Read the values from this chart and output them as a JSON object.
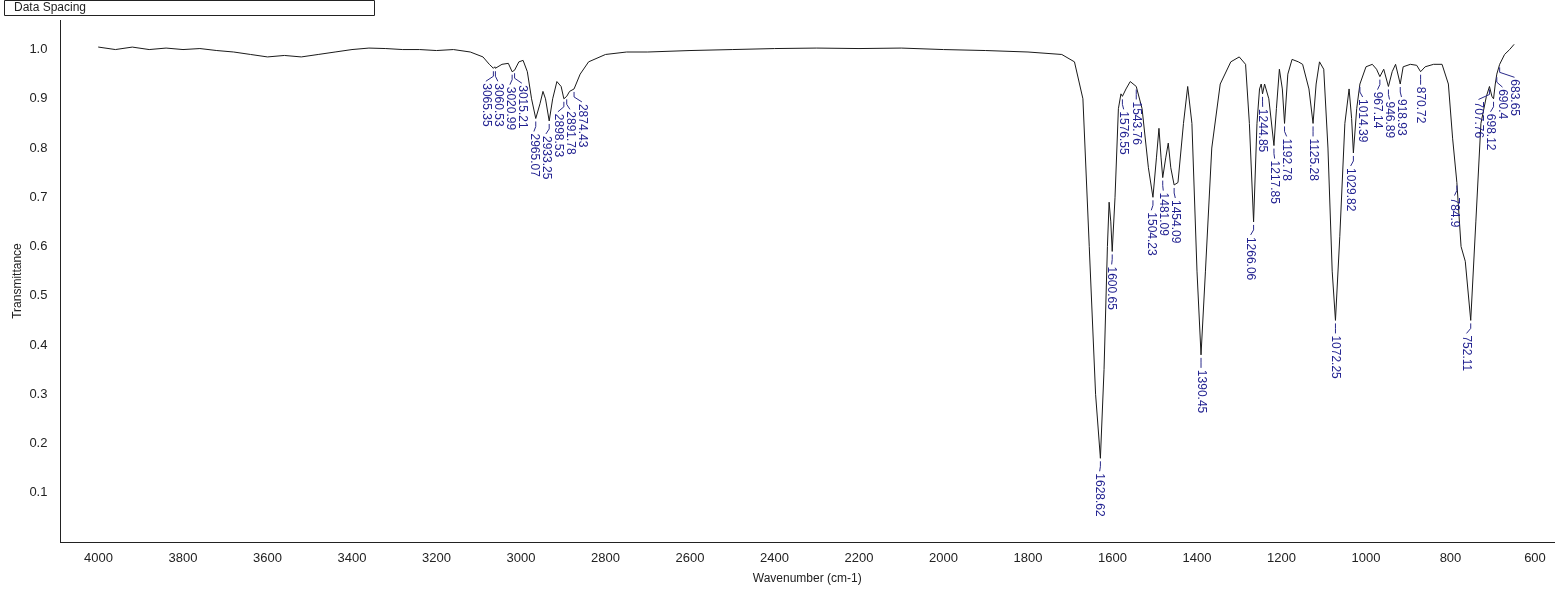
{
  "chart_data": {
    "type": "line",
    "xlabel": "Wavenumber (cm-1)",
    "ylabel": "Transmittance",
    "xlim": [
      4090,
      555
    ],
    "xticks": [
      4000,
      3800,
      3600,
      3400,
      3200,
      3000,
      2800,
      2600,
      2400,
      2200,
      2000,
      1800,
      1600,
      1400,
      1200,
      1000,
      800,
      600
    ],
    "ylim": [
      0,
      1.06
    ],
    "yticks": [
      0.1,
      0.2,
      0.3,
      0.4,
      0.5,
      0.6,
      0.7,
      0.8,
      0.9,
      {
        "value": 1,
        "label": "1.0"
      }
    ],
    "grid": false,
    "legend": false,
    "marker": "none",
    "line_style": "solid",
    "series": [
      {
        "color": "#1a1a1a",
        "x": [
          4000,
          3960,
          3920,
          3880,
          3840,
          3800,
          3760,
          3720,
          3680,
          3640,
          3600,
          3560,
          3520,
          3480,
          3440,
          3400,
          3360,
          3320,
          3280,
          3240,
          3200,
          3160,
          3120,
          3090,
          3075,
          3065.35,
          3062,
          3060.53,
          3045,
          3030,
          3020.99,
          3015.21,
          3005,
          2995,
          2985,
          2975,
          2965.07,
          2955,
          2948,
          2942,
          2933.25,
          2925,
          2915,
          2905,
          2898.53,
          2891.78,
          2885,
          2874.43,
          2860,
          2840,
          2800,
          2750,
          2700,
          2600,
          2500,
          2400,
          2300,
          2200,
          2100,
          2000,
          1900,
          1800,
          1720,
          1690,
          1670,
          1655,
          1640,
          1628.62,
          1620,
          1612,
          1608,
          1604,
          1600.65,
          1594,
          1586,
          1580,
          1576.55,
          1568,
          1558,
          1543.76,
          1530,
          1515,
          1504.23,
          1496,
          1490,
          1485,
          1481.09,
          1474,
          1468,
          1462,
          1454.09,
          1445,
          1432,
          1422,
          1412,
          1400,
          1390.45,
          1380,
          1365,
          1345,
          1320,
          1300,
          1285,
          1276,
          1266.06,
          1258,
          1252,
          1248,
          1244.85,
          1240,
          1230,
          1217.85,
          1212,
          1205,
          1198,
          1192.78,
          1185,
          1175,
          1160,
          1150,
          1135,
          1125.28,
          1118,
          1110,
          1100,
          1090,
          1080,
          1072.25,
          1062,
          1050,
          1040,
          1034,
          1029.82,
          1022,
          1014.39,
          1000,
          985,
          975,
          967.14,
          958,
          946.89,
          938,
          930,
          918.93,
          912,
          895,
          880,
          870.72,
          860,
          840,
          820,
          805,
          795,
          784.9,
          775,
          765,
          752.11,
          740,
          728,
          715,
          707.76,
          702,
          698.12,
          694,
          690.4,
          683.65,
          672,
          660,
          650
        ],
        "values": [
          1.005,
          1.0,
          1.005,
          1.0,
          1.003,
          1.0,
          1.002,
          0.998,
          0.995,
          0.99,
          0.985,
          0.988,
          0.985,
          0.99,
          0.995,
          1.0,
          1.003,
          1.002,
          1.0,
          1.0,
          0.998,
          1.0,
          0.995,
          0.985,
          0.97,
          0.962,
          0.965,
          0.962,
          0.97,
          0.972,
          0.955,
          0.958,
          0.975,
          0.978,
          0.955,
          0.9,
          0.86,
          0.89,
          0.915,
          0.9,
          0.855,
          0.9,
          0.935,
          0.925,
          0.9,
          0.905,
          0.915,
          0.92,
          0.95,
          0.975,
          0.99,
          0.995,
          0.995,
          0.998,
          1.0,
          1.002,
          1.003,
          1.002,
          1.003,
          1.0,
          0.998,
          0.995,
          0.99,
          0.975,
          0.9,
          0.6,
          0.3,
          0.17,
          0.35,
          0.6,
          0.69,
          0.65,
          0.59,
          0.7,
          0.88,
          0.91,
          0.905,
          0.92,
          0.935,
          0.925,
          0.88,
          0.76,
          0.7,
          0.78,
          0.84,
          0.78,
          0.74,
          0.78,
          0.81,
          0.76,
          0.725,
          0.73,
          0.85,
          0.925,
          0.85,
          0.55,
          0.38,
          0.55,
          0.8,
          0.93,
          0.975,
          0.985,
          0.97,
          0.85,
          0.65,
          0.85,
          0.92,
          0.93,
          0.91,
          0.93,
          0.9,
          0.805,
          0.88,
          0.96,
          0.92,
          0.85,
          0.95,
          0.98,
          0.975,
          0.97,
          0.92,
          0.85,
          0.93,
          0.975,
          0.96,
          0.8,
          0.55,
          0.45,
          0.62,
          0.85,
          0.92,
          0.86,
          0.79,
          0.88,
          0.93,
          0.965,
          0.97,
          0.96,
          0.945,
          0.96,
          0.925,
          0.955,
          0.97,
          0.93,
          0.965,
          0.97,
          0.968,
          0.955,
          0.965,
          0.97,
          0.97,
          0.93,
          0.82,
          0.73,
          0.6,
          0.57,
          0.45,
          0.65,
          0.85,
          0.905,
          0.925,
          0.905,
          0.9,
          0.93,
          0.95,
          0.97,
          0.99,
          1.0,
          1.01
        ]
      }
    ],
    "annotations": [
      "Data Spacing",
      {
        "text": "3065.35",
        "x": 3065.35,
        "y": 0.962
      },
      {
        "text": "3060.53",
        "x": 3060.53,
        "y": 0.962
      },
      {
        "text": "3020.99",
        "x": 3020.99,
        "y": 0.955
      },
      {
        "text": "3015.21",
        "x": 3015.21,
        "y": 0.958
      },
      {
        "text": "2965.07",
        "x": 2965.07,
        "y": 0.86
      },
      {
        "text": "2933.25",
        "x": 2933.25,
        "y": 0.855
      },
      {
        "text": "2898.53",
        "x": 2898.53,
        "y": 0.9
      },
      {
        "text": "2891.78",
        "x": 2891.78,
        "y": 0.905
      },
      {
        "text": "2874.43",
        "x": 2874.43,
        "y": 0.92
      },
      {
        "text": "1628.62",
        "x": 1628.62,
        "y": 0.17
      },
      {
        "text": "1600.65",
        "x": 1600.65,
        "y": 0.59
      },
      {
        "text": "1576.55",
        "x": 1576.55,
        "y": 0.905
      },
      {
        "text": "1543.76",
        "x": 1543.76,
        "y": 0.925
      },
      {
        "text": "1504.23",
        "x": 1504.23,
        "y": 0.7
      },
      {
        "text": "1481.09",
        "x": 1481.09,
        "y": 0.74
      },
      {
        "text": "1454.09",
        "x": 1454.09,
        "y": 0.725
      },
      {
        "text": "1390.45",
        "x": 1390.45,
        "y": 0.38
      },
      {
        "text": "1266.06",
        "x": 1266.06,
        "y": 0.65
      },
      {
        "text": "1244.85",
        "x": 1244.85,
        "y": 0.91
      },
      {
        "text": "1217.85",
        "x": 1217.85,
        "y": 0.805
      },
      {
        "text": "1192.78",
        "x": 1192.78,
        "y": 0.85
      },
      {
        "text": "1125.28",
        "x": 1125.28,
        "y": 0.85
      },
      {
        "text": "1072.25",
        "x": 1072.25,
        "y": 0.45
      },
      {
        "text": "1029.82",
        "x": 1029.82,
        "y": 0.79
      },
      {
        "text": "1014.39",
        "x": 1014.39,
        "y": 0.93
      },
      {
        "text": "967.14",
        "x": 967.14,
        "y": 0.945
      },
      {
        "text": "946.89",
        "x": 946.89,
        "y": 0.925
      },
      {
        "text": "918.93",
        "x": 918.93,
        "y": 0.93
      },
      {
        "text": "870.72",
        "x": 870.72,
        "y": 0.955
      },
      {
        "text": "784.9",
        "x": 784.9,
        "y": 0.73
      },
      {
        "text": "752.11",
        "x": 752.11,
        "y": 0.45
      },
      {
        "text": "707.76",
        "x": 707.76,
        "y": 0.925
      },
      {
        "text": "698.12",
        "x": 698.12,
        "y": 0.9
      },
      {
        "text": "690.4",
        "x": 690.4,
        "y": 0.95
      },
      {
        "text": "683.65",
        "x": 683.65,
        "y": 0.97
      }
    ]
  }
}
